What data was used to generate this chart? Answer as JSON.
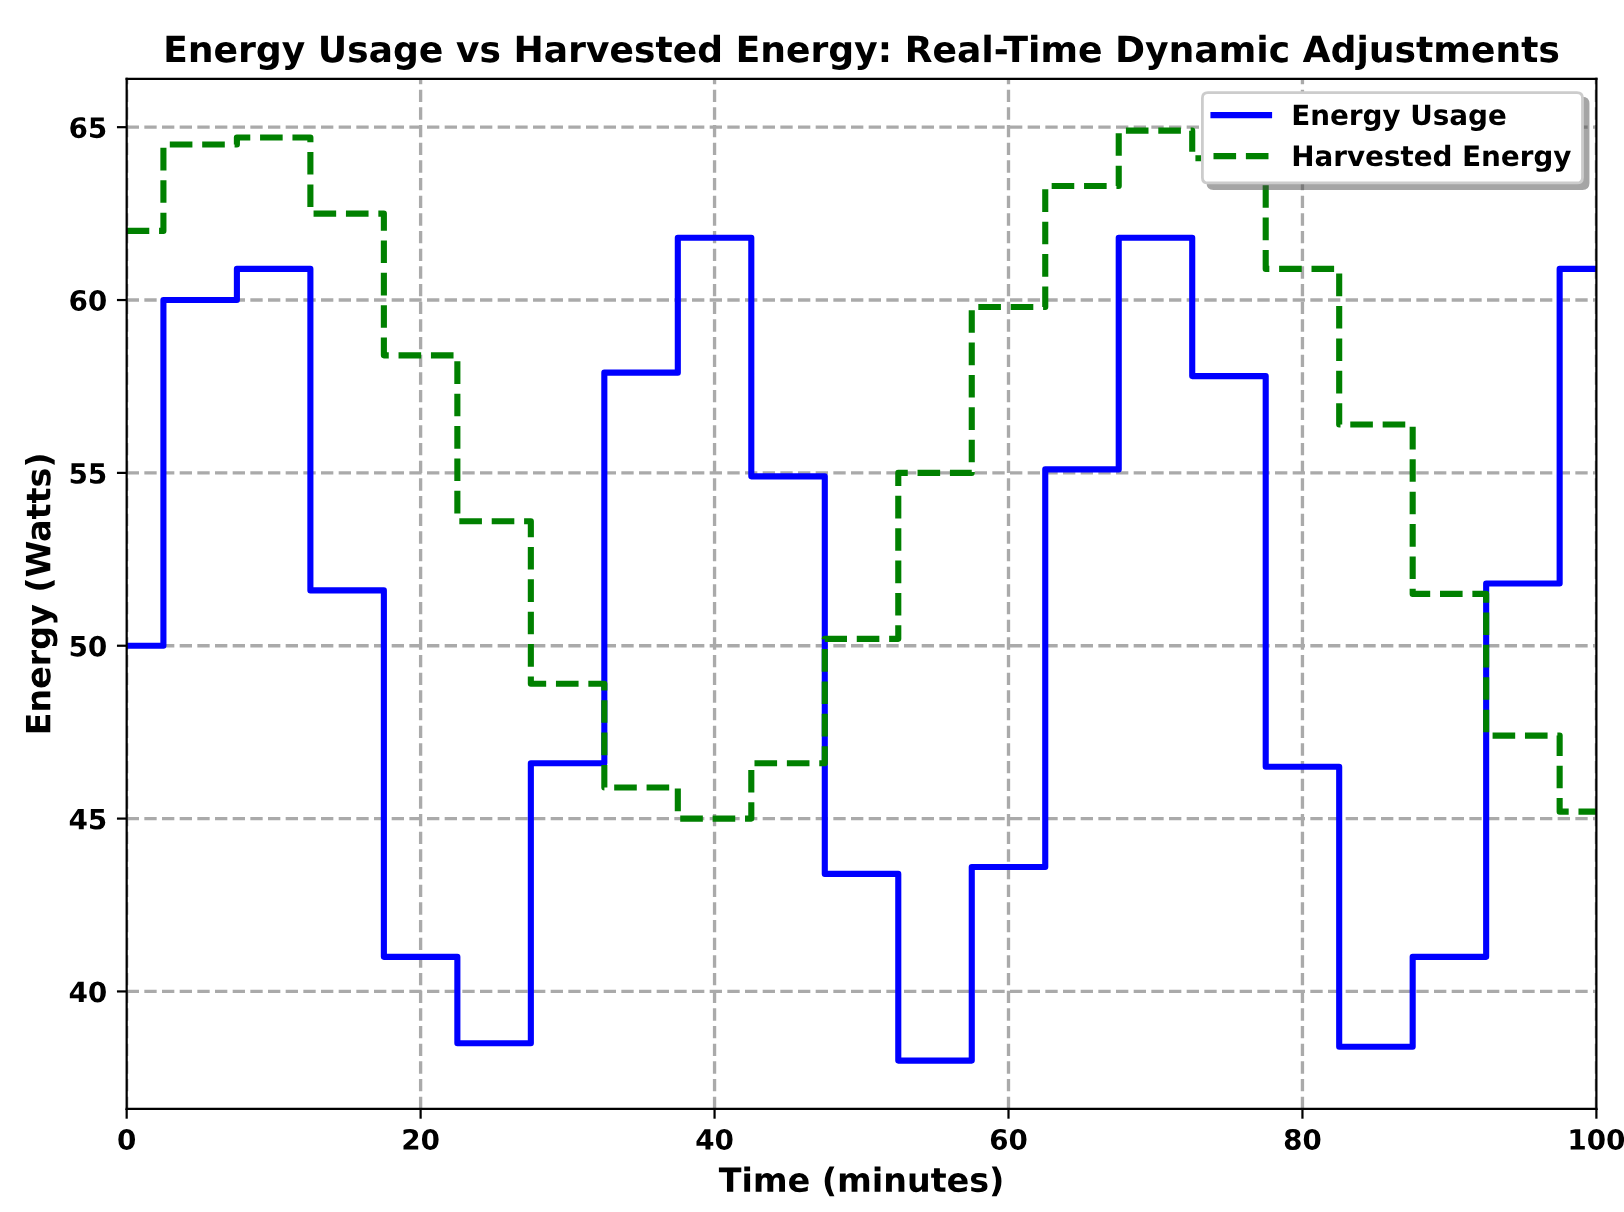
{
  "chart_data": {
    "type": "step",
    "title": "Energy Usage vs Harvested Energy: Real-Time Dynamic Adjustments",
    "xlabel": "Time (minutes)",
    "ylabel": "Energy (Watts)",
    "x": [
      0,
      5,
      10,
      15,
      20,
      25,
      30,
      35,
      40,
      45,
      50,
      55,
      60,
      65,
      70,
      75,
      80,
      85,
      90,
      95,
      100
    ],
    "series": [
      {
        "name": "Energy Usage",
        "color": "#0000ff",
        "line_style": "solid",
        "values": [
          50,
          60,
          60.9,
          51.6,
          41,
          38.5,
          46.6,
          57.9,
          61.8,
          54.9,
          43.4,
          38,
          43.6,
          55.1,
          61.8,
          57.8,
          46.5,
          38.4,
          41,
          51.8,
          60.9
        ]
      },
      {
        "name": "Harvested Energy",
        "color": "#008000",
        "line_style": "dashed",
        "values": [
          62,
          64.5,
          64.7,
          62.5,
          58.4,
          53.6,
          48.9,
          45.9,
          45,
          46.6,
          50.2,
          55,
          59.8,
          63.3,
          64.9,
          64.1,
          60.9,
          56.4,
          51.5,
          47.4,
          45.2
        ]
      }
    ],
    "xlim": [
      0,
      100
    ],
    "xticks": [
      0,
      20,
      40,
      60,
      80,
      100
    ],
    "ylim": [
      36.6,
      66.4
    ],
    "yticks": [
      40,
      45,
      50,
      55,
      60,
      65
    ],
    "grid": true,
    "legend": "top right"
  }
}
